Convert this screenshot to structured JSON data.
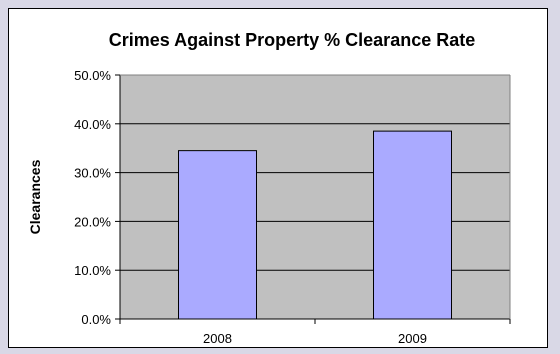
{
  "chart_data": {
    "type": "bar",
    "title": "Crimes Against Property % Clearance Rate",
    "xlabel": "",
    "ylabel": "Clearances",
    "categories": [
      "2008",
      "2009"
    ],
    "values": [
      34.5,
      38.5
    ],
    "ylim": [
      0,
      50
    ],
    "yticks": [
      "0.0%",
      "10.0%",
      "20.0%",
      "30.0%",
      "40.0%",
      "50.0%"
    ],
    "ytick_values": [
      0,
      10,
      20,
      30,
      40,
      50
    ],
    "grid": true,
    "legend": "none",
    "colors": {
      "bar_fill": "#aaaaff",
      "bar_stroke": "#000000",
      "plot_background": "#c0c0c0",
      "frame_background": "#d9d8e6"
    }
  }
}
